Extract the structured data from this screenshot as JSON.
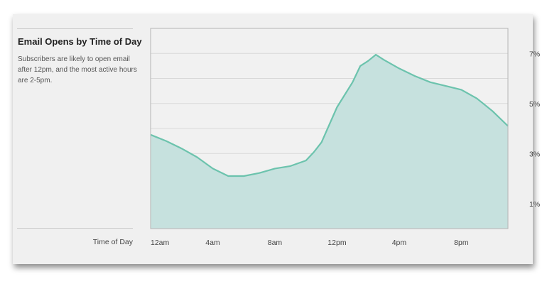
{
  "panel": {
    "title": "Email Opens by Time of Day",
    "description": "Subscribers are likely to open email after 12pm, and the most active hours are 2-5pm.",
    "x_axis_title": "Time of Day"
  },
  "colors": {
    "line": "#6cc3ad",
    "area": "#c6e1de",
    "plot_bg": "#f1f1f1",
    "grid": "#d9d9d9",
    "card_bg": "#f0f0f0"
  },
  "chart_data": {
    "type": "area",
    "title": "Email Opens by Time of Day",
    "xlabel": "Time of Day",
    "ylabel": "",
    "xlim": [
      0,
      23
    ],
    "ylim": [
      0,
      8
    ],
    "grid": true,
    "y_axis_side": "right",
    "x_ticks": [
      {
        "value": 0,
        "label": "12am"
      },
      {
        "value": 4,
        "label": "4am"
      },
      {
        "value": 8,
        "label": "8am"
      },
      {
        "value": 12,
        "label": "12pm"
      },
      {
        "value": 16,
        "label": "4pm"
      },
      {
        "value": 20,
        "label": "8pm"
      }
    ],
    "y_ticks": [
      {
        "value": 1,
        "label": "1%"
      },
      {
        "value": 3,
        "label": "3%"
      },
      {
        "value": 5,
        "label": "5%"
      },
      {
        "value": 7,
        "label": "7%"
      }
    ],
    "series": [
      {
        "x": [
          0,
          1,
          2,
          3,
          4,
          5,
          6,
          7,
          8,
          9,
          10,
          10.5,
          11,
          12,
          13,
          13.5,
          14,
          14.5,
          15,
          16,
          17,
          18,
          19,
          20,
          21,
          22,
          23
        ],
        "values": [
          3.75,
          3.5,
          3.2,
          2.85,
          2.4,
          2.1,
          2.1,
          2.22,
          2.4,
          2.5,
          2.72,
          3.05,
          3.45,
          4.85,
          5.85,
          6.5,
          6.7,
          6.95,
          6.75,
          6.4,
          6.1,
          5.85,
          5.7,
          5.55,
          5.2,
          4.7,
          4.1
        ]
      }
    ]
  }
}
